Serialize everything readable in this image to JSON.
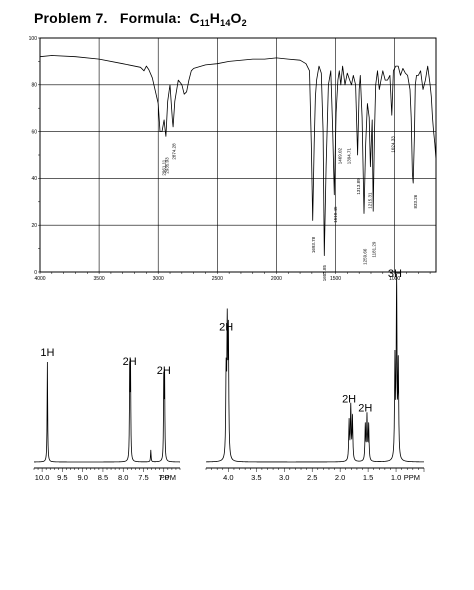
{
  "title": {
    "problem": "Problem 7.",
    "formula_label": "Formula:",
    "formula": [
      {
        "t": "C",
        "sub": false
      },
      {
        "t": "11",
        "sub": true
      },
      {
        "t": "H",
        "sub": false
      },
      {
        "t": "14",
        "sub": true
      },
      {
        "t": "O",
        "sub": false
      },
      {
        "t": "2",
        "sub": true
      }
    ]
  },
  "chart_data": [
    {
      "type": "line",
      "title": "",
      "xlabel": "",
      "ylabel": "",
      "xlim": [
        4000,
        650
      ],
      "ylim": [
        0,
        100
      ],
      "grid": true,
      "x_ticks": [
        4000,
        3500,
        3000,
        2500,
        2000,
        1500,
        1000
      ],
      "y_ticks": [
        0,
        20,
        40,
        60,
        80,
        100
      ],
      "y_tick_labels": [
        "0",
        "20",
        "40",
        "60",
        "80",
        "100"
      ],
      "x_tick_labels": [
        "4000",
        "3500",
        "3000",
        "2500",
        "2000",
        "1500",
        "1000"
      ],
      "series": [
        {
          "x": [
            4000,
            3900,
            3700,
            3500,
            3300,
            3150,
            3120,
            3100,
            3080,
            3050,
            3000,
            2985,
            2968,
            2950,
            2940,
            2935,
            2920,
            2900,
            2880,
            2874,
            2860,
            2830,
            2800,
            2780,
            2760,
            2740,
            2720,
            2700,
            2600,
            2500,
            2400,
            2200,
            2100,
            2000,
            1900,
            1800,
            1750,
            1720,
            1705,
            1693,
            1680,
            1670,
            1660,
            1640,
            1620,
            1605,
            1595,
            1580,
            1560,
            1540,
            1525,
            1510,
            1495,
            1480,
            1468,
            1455,
            1440,
            1420,
            1400,
            1380,
            1365,
            1350,
            1330,
            1313,
            1300,
            1290,
            1275,
            1259,
            1245,
            1230,
            1215,
            1205,
            1190,
            1181,
            1170,
            1160,
            1145,
            1130,
            1115,
            1100,
            1080,
            1060,
            1040,
            1024,
            1010,
            990,
            970,
            950,
            930,
            910,
            890,
            870,
            860,
            850,
            843,
            833,
            825,
            815,
            800,
            780,
            760,
            740,
            720,
            700,
            690,
            680,
            670,
            660,
            650
          ],
          "values": [
            92,
            92.5,
            92,
            91,
            89,
            87.5,
            86,
            88,
            86.5,
            83,
            72,
            60,
            60,
            65,
            60,
            58,
            73,
            80,
            65,
            62,
            73,
            82,
            80,
            76,
            77,
            82,
            86,
            87,
            88.5,
            89,
            90,
            91,
            91,
            91.5,
            91,
            90.5,
            89,
            86,
            55,
            22,
            55,
            75,
            82,
            88,
            85,
            60,
            7,
            45,
            80,
            86,
            62,
            33,
            68,
            82,
            86,
            80,
            88,
            80,
            85,
            82,
            80,
            84,
            80,
            50,
            78,
            84,
            66,
            25,
            55,
            72,
            66,
            45,
            65,
            26,
            60,
            80,
            86,
            78,
            82,
            86,
            82,
            82,
            84,
            67,
            86,
            88,
            88,
            84,
            87,
            85,
            84,
            78,
            66,
            42,
            38,
            58,
            80,
            84,
            84,
            86,
            78,
            82,
            88,
            80,
            75,
            66,
            60,
            55,
            48
          ]
        }
      ],
      "peak_labels": [
        {
          "label": "2961.11",
          "x": 2961,
          "y": 48
        },
        {
          "label": "2935.03",
          "x": 2936,
          "y": 49
        },
        {
          "label": "2874.28",
          "x": 2874,
          "y": 55
        },
        {
          "label": "1693.78",
          "x": 1693,
          "y": 15
        },
        {
          "label": "1603.85",
          "x": 1603,
          "y": 3
        },
        {
          "label": "1510.45",
          "x": 1510,
          "y": 28
        },
        {
          "label": "1469.02",
          "x": 1469,
          "y": 53
        },
        {
          "label": "1394.71",
          "x": 1394,
          "y": 53
        },
        {
          "label": "1313.89",
          "x": 1313,
          "y": 40
        },
        {
          "label": "1259.66",
          "x": 1259,
          "y": 10
        },
        {
          "label": "1215.31",
          "x": 1215,
          "y": 34
        },
        {
          "label": "1181.29",
          "x": 1181,
          "y": 13
        },
        {
          "label": "1024.33",
          "x": 1024,
          "y": 58
        },
        {
          "label": "833.26",
          "x": 833,
          "y": 33
        }
      ]
    },
    {
      "type": "line",
      "title": "",
      "xlabel": "PPM",
      "xlim": [
        10.2,
        6.6
      ],
      "x_ticks": [
        10.0,
        9.5,
        9.0,
        8.5,
        8.0,
        7.5,
        7.0
      ],
      "x_tick_labels": [
        "10.0",
        "9.5",
        "9.0",
        "8.5",
        "8.0",
        "7.5",
        "7.0"
      ],
      "peaks": [
        {
          "ppm": 9.87,
          "height": 1.0,
          "label": "1H"
        },
        {
          "ppm": 7.84,
          "height": 0.88,
          "label": "2H"
        },
        {
          "ppm": 7.82,
          "height": 0.91,
          "label": ""
        },
        {
          "ppm": 7.32,
          "height": 0.12,
          "label": ""
        },
        {
          "ppm": 7.0,
          "height": 0.79,
          "label": "2H"
        },
        {
          "ppm": 6.98,
          "height": 0.82,
          "label": ""
        }
      ]
    },
    {
      "type": "line",
      "title": "",
      "xlabel": "PPM",
      "xlim": [
        4.4,
        0.5
      ],
      "x_ticks": [
        4.0,
        3.5,
        3.0,
        2.5,
        2.0,
        1.5,
        1.0
      ],
      "x_tick_labels": [
        "4.0",
        "3.5",
        "3.0",
        "2.5",
        "2.0",
        "1.5",
        "1.0"
      ],
      "peaks": [
        {
          "ppm": 4.04,
          "height": 0.46,
          "label": "2H"
        },
        {
          "ppm": 4.02,
          "height": 0.7,
          "label": ""
        },
        {
          "ppm": 4.0,
          "height": 0.68,
          "label": ""
        },
        {
          "ppm": 1.84,
          "height": 0.22,
          "label": "2H"
        },
        {
          "ppm": 1.81,
          "height": 0.3,
          "label": ""
        },
        {
          "ppm": 1.78,
          "height": 0.24,
          "label": ""
        },
        {
          "ppm": 1.55,
          "height": 0.2,
          "label": "2H"
        },
        {
          "ppm": 1.52,
          "height": 0.25,
          "label": ""
        },
        {
          "ppm": 1.49,
          "height": 0.2,
          "label": ""
        },
        {
          "ppm": 1.02,
          "height": 0.55,
          "label": "3H"
        },
        {
          "ppm": 0.99,
          "height": 1.0,
          "label": ""
        },
        {
          "ppm": 0.96,
          "height": 0.52,
          "label": ""
        }
      ]
    }
  ]
}
